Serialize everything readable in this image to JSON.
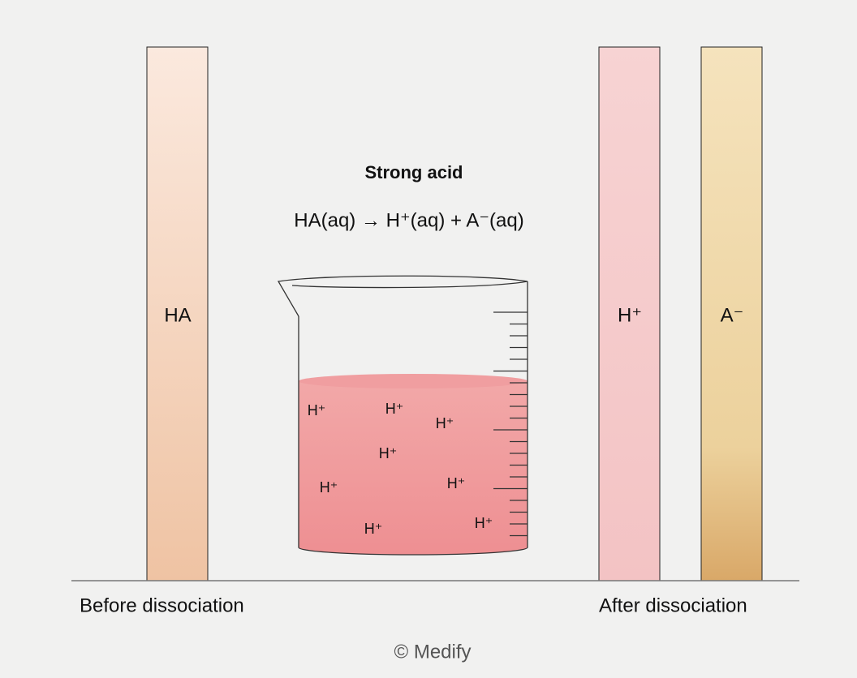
{
  "title": "Strong acid",
  "equation": "HA(aq) → H⁺(aq) + A⁻(aq)",
  "columns": [
    {
      "label": "HA"
    },
    {
      "label": "H⁺"
    },
    {
      "label": "A⁻"
    }
  ],
  "captions": {
    "before": "Before dissociation",
    "after": "After dissociation"
  },
  "ions": [
    "H⁺",
    "H⁺",
    "H⁺",
    "H⁺",
    "H⁺",
    "H⁺",
    "H⁺",
    "H⁺"
  ],
  "footer": "© Medify"
}
